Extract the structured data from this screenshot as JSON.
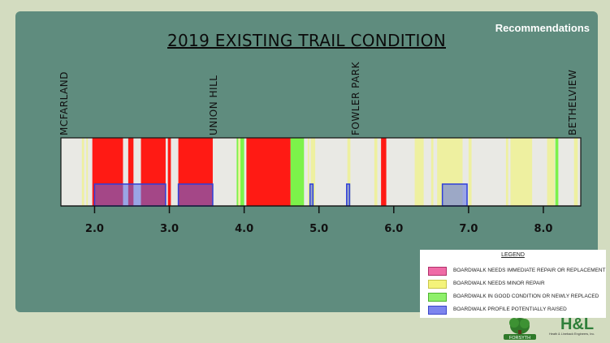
{
  "section_label": "Recommendations",
  "title": "2019 EXISTING TRAIL CONDITION",
  "locations": [
    {
      "name": "MCFARLAND",
      "mile": 1.55
    },
    {
      "name": "UNION HILL",
      "mile": 3.55
    },
    {
      "name": "FOWLER PARK",
      "mile": 5.45
    },
    {
      "name": "BETHELVIEW",
      "mile": 8.35
    }
  ],
  "axis": {
    "min_mile": 1.55,
    "max_mile": 8.5,
    "ticks": [
      "2.0",
      "3.0",
      "4.0",
      "5.0",
      "6.0",
      "7.0",
      "8.0"
    ]
  },
  "colors": {
    "immediate": "#ff1a14",
    "minor": "#eef0a0",
    "good": "#7cf24a",
    "raised": "#5a6ee6",
    "panel": "#5f8c7e",
    "track": "#e9e9e4"
  },
  "segments": [
    {
      "condition": "minor",
      "from": 1.83,
      "to": 1.86
    },
    {
      "condition": "minor",
      "from": 1.89,
      "to": 1.91
    },
    {
      "condition": "immediate",
      "from": 1.97,
      "to": 2.38
    },
    {
      "condition": "immediate",
      "from": 2.45,
      "to": 2.52
    },
    {
      "condition": "immediate",
      "from": 2.62,
      "to": 2.95
    },
    {
      "condition": "immediate",
      "from": 2.98,
      "to": 3.02
    },
    {
      "condition": "immediate",
      "from": 3.12,
      "to": 3.58
    },
    {
      "condition": "good",
      "from": 3.9,
      "to": 4.0
    },
    {
      "condition": "minor",
      "from": 3.92,
      "to": 3.95
    },
    {
      "condition": "immediate",
      "from": 4.03,
      "to": 4.62
    },
    {
      "condition": "good",
      "from": 4.62,
      "to": 4.8
    },
    {
      "condition": "minor",
      "from": 4.85,
      "to": 4.87
    },
    {
      "condition": "minor",
      "from": 4.89,
      "to": 4.95
    },
    {
      "condition": "minor",
      "from": 5.38,
      "to": 5.42
    },
    {
      "condition": "minor",
      "from": 5.74,
      "to": 5.78
    },
    {
      "condition": "immediate",
      "from": 5.83,
      "to": 5.9
    },
    {
      "condition": "minor",
      "from": 6.28,
      "to": 6.4
    },
    {
      "condition": "minor",
      "from": 6.5,
      "to": 6.53
    },
    {
      "condition": "minor",
      "from": 6.58,
      "to": 6.92
    },
    {
      "condition": "minor",
      "from": 7.0,
      "to": 7.04
    },
    {
      "condition": "minor",
      "from": 7.5,
      "to": 7.53
    },
    {
      "condition": "minor",
      "from": 7.56,
      "to": 7.85
    },
    {
      "condition": "minor",
      "from": 8.05,
      "to": 8.15
    },
    {
      "condition": "good",
      "from": 8.16,
      "to": 8.2
    },
    {
      "condition": "minor",
      "from": 8.41,
      "to": 8.46
    }
  ],
  "raised": [
    {
      "from": 2.0,
      "to": 2.95
    },
    {
      "from": 3.12,
      "to": 3.58
    },
    {
      "from": 4.88,
      "to": 4.92
    },
    {
      "from": 5.37,
      "to": 5.41
    },
    {
      "from": 6.65,
      "to": 6.98
    }
  ],
  "legend": {
    "title": "LEGEND",
    "items": [
      {
        "key": "immediate",
        "label": "BOARDWALK NEEDS IMMEDIATE REPAIR OR REPLACEMENT",
        "swatch": "#ef6ba6",
        "border": "#b0306a"
      },
      {
        "key": "minor",
        "label": "BOARDWALK NEEDS MINOR REPAIR",
        "swatch": "#f4f37a",
        "border": "#c9c64a"
      },
      {
        "key": "good",
        "label": "BOARDWALK IN GOOD CONDITION OR NEWLY REPLACED",
        "swatch": "#8ef06a",
        "border": "#4fb32f"
      },
      {
        "key": "raised",
        "label": "BOARDWALK PROFILE POTENTIALLY RAISED",
        "swatch": "#7c84ee",
        "border": "#3b46c9"
      }
    ]
  },
  "logos": {
    "forsyth_text": "FORSYTH",
    "hl_text": "H&L",
    "hl_subtext": "Heath & Lineback Engineers, Inc."
  }
}
